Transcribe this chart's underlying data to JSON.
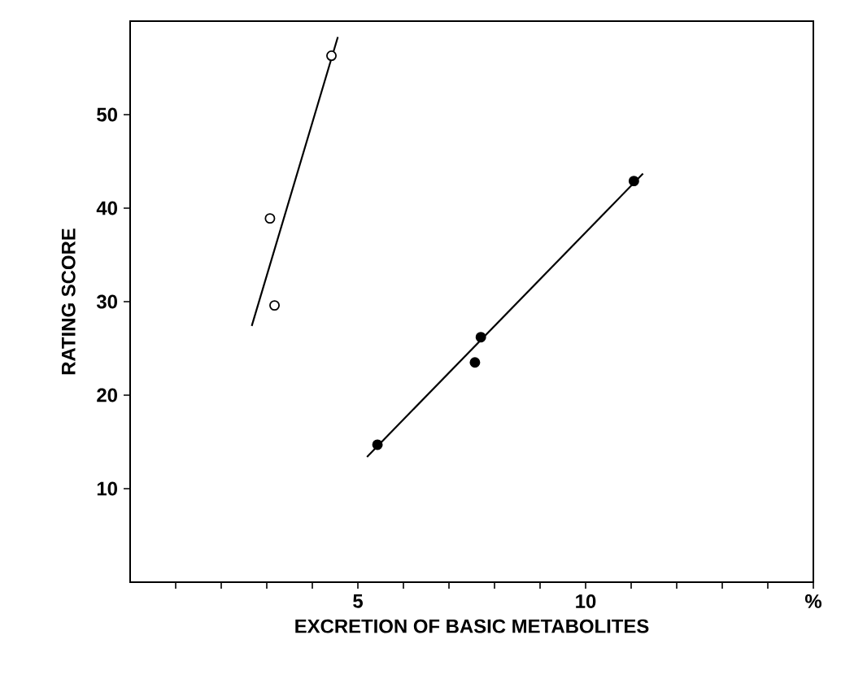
{
  "chart_data": {
    "type": "scatter",
    "xlabel": "EXCRETION  OF  BASIC  METABOLITES",
    "ylabel": "RATING  SCORE",
    "xlim": [
      0,
      15
    ],
    "ylim": [
      0,
      60
    ],
    "xticks": [
      {
        "value": 1,
        "label": null
      },
      {
        "value": 2,
        "label": null
      },
      {
        "value": 3,
        "label": null
      },
      {
        "value": 4,
        "label": null
      },
      5,
      {
        "value": 6,
        "label": null
      },
      {
        "value": 7,
        "label": null
      },
      {
        "value": 8,
        "label": null
      },
      {
        "value": 9,
        "label": null
      },
      10,
      {
        "value": 11,
        "label": null
      },
      {
        "value": 12,
        "label": null
      },
      {
        "value": 13,
        "label": null
      },
      {
        "value": 14,
        "label": null
      },
      {
        "value": 15,
        "label": "%"
      }
    ],
    "yticks": [
      10,
      20,
      30,
      40,
      50
    ],
    "grid": false,
    "marker": "circle",
    "series": [
      {
        "color": "#ffffff",
        "x": [
          4.42,
          3.07,
          3.17
        ],
        "values": [
          56.3,
          38.9,
          29.6
        ]
      },
      {
        "color": "#000000",
        "x": [
          11.06,
          7.7,
          7.57,
          5.43
        ],
        "values": [
          42.9,
          26.2,
          23.5,
          14.7
        ]
      },
      {
        "type": "line",
        "color": "#000000",
        "marker": "none",
        "x": [
          2.67,
          4.56
        ],
        "values": [
          27.4,
          58.3
        ]
      },
      {
        "type": "line",
        "color": "#000000",
        "marker": "none",
        "x": [
          5.2,
          11.26
        ],
        "values": [
          13.4,
          43.7
        ]
      }
    ]
  }
}
